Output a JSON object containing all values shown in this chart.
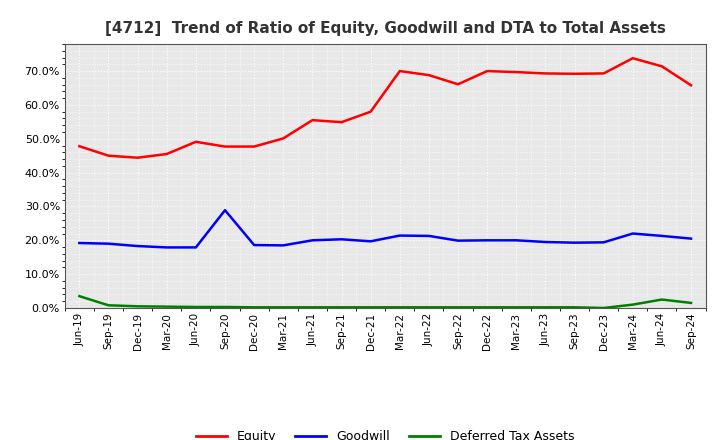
{
  "title": "[4712]  Trend of Ratio of Equity, Goodwill and DTA to Total Assets",
  "x_labels": [
    "Jun-19",
    "Sep-19",
    "Dec-19",
    "Mar-20",
    "Jun-20",
    "Sep-20",
    "Dec-20",
    "Mar-21",
    "Jun-21",
    "Sep-21",
    "Dec-21",
    "Mar-22",
    "Jun-22",
    "Sep-22",
    "Dec-22",
    "Mar-23",
    "Jun-23",
    "Sep-23",
    "Dec-23",
    "Mar-24",
    "Jun-24",
    "Sep-24"
  ],
  "equity": [
    0.478,
    0.45,
    0.444,
    0.455,
    0.491,
    0.477,
    0.477,
    0.501,
    0.555,
    0.549,
    0.58,
    0.7,
    0.688,
    0.661,
    0.7,
    0.697,
    0.693,
    0.692,
    0.693,
    0.738,
    0.714,
    0.658
  ],
  "goodwill": [
    0.192,
    0.19,
    0.183,
    0.179,
    0.179,
    0.289,
    0.186,
    0.185,
    0.2,
    0.203,
    0.197,
    0.214,
    0.213,
    0.199,
    0.2,
    0.2,
    0.195,
    0.193,
    0.194,
    0.22,
    0.213,
    0.205
  ],
  "dta": [
    0.035,
    0.008,
    0.005,
    0.004,
    0.003,
    0.003,
    0.002,
    0.002,
    0.002,
    0.002,
    0.002,
    0.002,
    0.002,
    0.002,
    0.002,
    0.002,
    0.002,
    0.002,
    0.0,
    0.01,
    0.025,
    0.015
  ],
  "equity_color": "#FF0000",
  "goodwill_color": "#0000FF",
  "dta_color": "#008000",
  "ylim": [
    0.0,
    0.78
  ],
  "yticks": [
    0.0,
    0.1,
    0.2,
    0.3,
    0.4,
    0.5,
    0.6,
    0.7
  ],
  "background_color": "#ffffff",
  "plot_bg_color": "#e8e8e8",
  "grid_color": "#ffffff",
  "title_fontsize": 11,
  "legend_labels": [
    "Equity",
    "Goodwill",
    "Deferred Tax Assets"
  ]
}
